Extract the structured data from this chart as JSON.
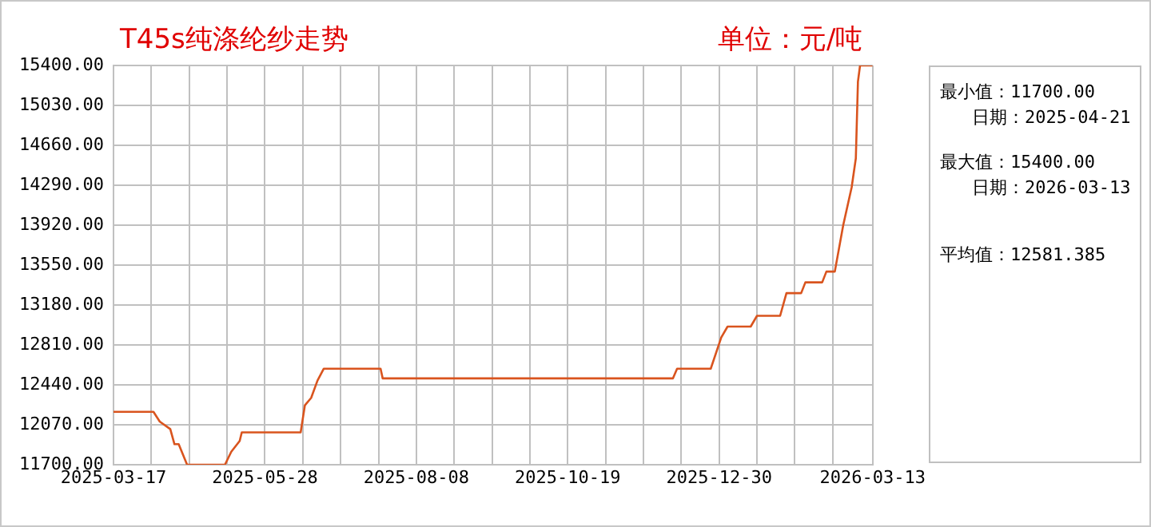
{
  "chart_data": {
    "type": "line",
    "title": "T45s纯涤纶纱走势",
    "annotations": [
      "单位：元/吨",
      "最小值：11700.00",
      "日期：2025-04-21",
      "最大值：15400.00",
      "日期：2026-03-13",
      "平均值：12581.385"
    ],
    "x": [
      "2025-03-17",
      "2025-04-05",
      "2025-04-08",
      "2025-04-13",
      "2025-04-15",
      "2025-04-17",
      "2025-04-21",
      "2025-05-09",
      "2025-05-12",
      "2025-05-16",
      "2025-05-17",
      "2025-06-14",
      "2025-06-16",
      "2025-06-19",
      "2025-06-22",
      "2025-06-25",
      "2025-07-22",
      "2025-07-23",
      "2025-12-08",
      "2025-12-10",
      "2025-12-26",
      "2025-12-31",
      "2026-01-03",
      "2026-01-14",
      "2026-01-17",
      "2026-01-28",
      "2026-01-31",
      "2026-02-07",
      "2026-02-09",
      "2026-02-17",
      "2026-02-19",
      "2026-02-23",
      "2026-02-27",
      "2026-03-03",
      "2026-03-05",
      "2026-03-06",
      "2026-03-07",
      "2026-03-13"
    ],
    "series": [
      {
        "color": "#d9541e",
        "values": [
          12190,
          12190,
          12100,
          12030,
          11890,
          11890,
          11700,
          11700,
          11820,
          11920,
          12000,
          12000,
          12250,
          12320,
          12480,
          12590,
          12590,
          12500,
          12500,
          12590,
          12590,
          12880,
          12980,
          12980,
          13080,
          13080,
          13290,
          13290,
          13390,
          13390,
          13490,
          13490,
          13920,
          14270,
          14540,
          15250,
          15400,
          15400
        ]
      }
    ],
    "xlim": [
      "2025-03-17",
      "2026-03-13"
    ],
    "xticks": [
      {
        "value": "2025-03-17",
        "label": "2025-03-17"
      },
      {
        "value": "2025-04-04",
        "label": null
      },
      {
        "value": "2025-04-22",
        "label": null
      },
      {
        "value": "2025-05-10",
        "label": null
      },
      {
        "value": "2025-05-28",
        "label": "2025-05-28"
      },
      {
        "value": "2025-06-15",
        "label": null
      },
      {
        "value": "2025-07-03",
        "label": null
      },
      {
        "value": "2025-07-21",
        "label": null
      },
      {
        "value": "2025-08-08",
        "label": "2025-08-08"
      },
      {
        "value": "2025-08-26",
        "label": null
      },
      {
        "value": "2025-09-13",
        "label": null
      },
      {
        "value": "2025-10-01",
        "label": null
      },
      {
        "value": "2025-10-19",
        "label": "2025-10-19"
      },
      {
        "value": "2025-11-06",
        "label": null
      },
      {
        "value": "2025-11-24",
        "label": null
      },
      {
        "value": "2025-12-12",
        "label": null
      },
      {
        "value": "2025-12-30",
        "label": "2025-12-30"
      },
      {
        "value": "2026-01-17",
        "label": null
      },
      {
        "value": "2026-02-04",
        "label": null
      },
      {
        "value": "2026-02-22",
        "label": null
      },
      {
        "value": "2026-03-13",
        "label": "2026-03-13"
      }
    ],
    "ylim": [
      11700,
      15400
    ],
    "yticks": [
      {
        "value": 11700,
        "label": "11700.00"
      },
      {
        "value": 12070,
        "label": "12070.00"
      },
      {
        "value": 12440,
        "label": "12440.00"
      },
      {
        "value": 12810,
        "label": "12810.00"
      },
      {
        "value": 13180,
        "label": "13180.00"
      },
      {
        "value": 13550,
        "label": "13550.00"
      },
      {
        "value": 13920,
        "label": "13920.00"
      },
      {
        "value": 14290,
        "label": "14290.00"
      },
      {
        "value": 14660,
        "label": "14660.00"
      },
      {
        "value": 15030,
        "label": "15030.00"
      },
      {
        "value": 15400,
        "label": "15400.00"
      }
    ],
    "grid": true,
    "legend": false,
    "marker": "none",
    "line_style": "solid"
  }
}
